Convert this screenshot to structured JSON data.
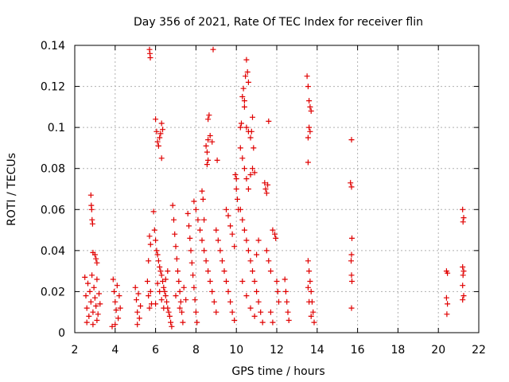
{
  "chart_data": {
    "type": "scatter",
    "title": "Day 356 of 2021, Rate Of TEC Index for receiver flin",
    "xlabel": "GPS time / hours",
    "ylabel": "ROTI / TECUs",
    "xlim": [
      2,
      22
    ],
    "ylim": [
      0,
      0.14
    ],
    "x_ticks": [
      2,
      4,
      6,
      8,
      10,
      12,
      14,
      16,
      18,
      20,
      22
    ],
    "y_ticks": [
      0,
      0.02,
      0.04,
      0.06,
      0.08,
      0.1,
      0.12,
      0.14
    ],
    "x_tick_labels": [
      "2",
      "4",
      "6",
      "8",
      "10",
      "12",
      "14",
      "16",
      "18",
      "20",
      "22"
    ],
    "y_tick_labels": [
      "0",
      "0.02",
      "0.04",
      "0.06",
      "0.08",
      "0.1",
      "0.12",
      "0.14"
    ],
    "grid": true,
    "marker": "+",
    "marker_color": "#e00000",
    "series": [
      {
        "name": "ROTI",
        "points": [
          [
            2.5,
            0.027
          ],
          [
            2.55,
            0.018
          ],
          [
            2.6,
            0.012
          ],
          [
            2.65,
            0.024
          ],
          [
            2.7,
            0.008
          ],
          [
            2.75,
            0.02
          ],
          [
            2.8,
            0.015
          ],
          [
            2.85,
            0.028
          ],
          [
            2.9,
            0.01
          ],
          [
            2.95,
            0.022
          ],
          [
            3.0,
            0.017
          ],
          [
            3.05,
            0.013
          ],
          [
            3.1,
            0.026
          ],
          [
            3.15,
            0.009
          ],
          [
            3.2,
            0.019
          ],
          [
            3.25,
            0.014
          ],
          [
            2.6,
            0.005
          ],
          [
            2.9,
            0.004
          ],
          [
            3.1,
            0.006
          ],
          [
            2.8,
            0.067
          ],
          [
            2.82,
            0.062
          ],
          [
            2.84,
            0.06
          ],
          [
            2.86,
            0.055
          ],
          [
            2.88,
            0.053
          ],
          [
            2.9,
            0.039
          ],
          [
            3.0,
            0.038
          ],
          [
            3.1,
            0.034
          ],
          [
            3.05,
            0.036
          ],
          [
            3.9,
            0.026
          ],
          [
            3.95,
            0.02
          ],
          [
            4.0,
            0.015
          ],
          [
            4.05,
            0.011
          ],
          [
            4.1,
            0.023
          ],
          [
            4.15,
            0.007
          ],
          [
            4.2,
            0.018
          ],
          [
            4.25,
            0.012
          ],
          [
            3.85,
            0.003
          ],
          [
            4.0,
            0.004
          ],
          [
            5.0,
            0.022
          ],
          [
            5.05,
            0.016
          ],
          [
            5.1,
            0.01
          ],
          [
            5.15,
            0.019
          ],
          [
            5.2,
            0.007
          ],
          [
            5.25,
            0.013
          ],
          [
            5.1,
            0.004
          ],
          [
            5.6,
            0.025
          ],
          [
            5.65,
            0.018
          ],
          [
            5.7,
            0.012
          ],
          [
            5.75,
            0.02
          ],
          [
            5.8,
            0.014
          ],
          [
            5.65,
            0.035
          ],
          [
            5.7,
            0.047
          ],
          [
            5.75,
            0.043
          ],
          [
            5.7,
            0.138
          ],
          [
            5.72,
            0.136
          ],
          [
            5.74,
            0.134
          ],
          [
            5.9,
            0.059
          ],
          [
            5.95,
            0.05
          ],
          [
            6.0,
            0.045
          ],
          [
            6.05,
            0.04
          ],
          [
            6.1,
            0.038
          ],
          [
            6.15,
            0.035
          ],
          [
            6.2,
            0.032
          ],
          [
            6.25,
            0.03
          ],
          [
            6.3,
            0.028
          ],
          [
            6.35,
            0.025
          ],
          [
            6.4,
            0.022
          ],
          [
            6.45,
            0.02
          ],
          [
            6.5,
            0.018
          ],
          [
            6.55,
            0.015
          ],
          [
            6.6,
            0.012
          ],
          [
            6.65,
            0.01
          ],
          [
            6.7,
            0.008
          ],
          [
            6.75,
            0.005
          ],
          [
            6.8,
            0.003
          ],
          [
            6.0,
            0.014
          ],
          [
            6.1,
            0.024
          ],
          [
            6.2,
            0.02
          ],
          [
            6.3,
            0.016
          ],
          [
            6.4,
            0.012
          ],
          [
            6.5,
            0.026
          ],
          [
            6.6,
            0.03
          ],
          [
            6.0,
            0.104
          ],
          [
            6.05,
            0.098
          ],
          [
            6.1,
            0.093
          ],
          [
            6.15,
            0.091
          ],
          [
            6.2,
            0.095
          ],
          [
            6.25,
            0.097
          ],
          [
            6.3,
            0.102
          ],
          [
            6.35,
            0.099
          ],
          [
            6.3,
            0.085
          ],
          [
            6.85,
            0.062
          ],
          [
            6.9,
            0.055
          ],
          [
            6.95,
            0.048
          ],
          [
            7.0,
            0.042
          ],
          [
            7.05,
            0.036
          ],
          [
            7.1,
            0.03
          ],
          [
            7.15,
            0.025
          ],
          [
            7.2,
            0.02
          ],
          [
            7.25,
            0.015
          ],
          [
            7.3,
            0.01
          ],
          [
            7.35,
            0.005
          ],
          [
            7.0,
            0.018
          ],
          [
            7.2,
            0.012
          ],
          [
            7.4,
            0.022
          ],
          [
            7.5,
            0.016
          ],
          [
            7.6,
            0.058
          ],
          [
            7.65,
            0.052
          ],
          [
            7.7,
            0.046
          ],
          [
            7.75,
            0.04
          ],
          [
            7.8,
            0.034
          ],
          [
            7.85,
            0.028
          ],
          [
            7.9,
            0.022
          ],
          [
            7.95,
            0.016
          ],
          [
            8.0,
            0.01
          ],
          [
            8.05,
            0.005
          ],
          [
            7.9,
            0.064
          ],
          [
            8.0,
            0.06
          ],
          [
            8.1,
            0.055
          ],
          [
            8.2,
            0.05
          ],
          [
            8.3,
            0.045
          ],
          [
            8.4,
            0.04
          ],
          [
            8.5,
            0.035
          ],
          [
            8.6,
            0.03
          ],
          [
            8.7,
            0.025
          ],
          [
            8.8,
            0.02
          ],
          [
            8.9,
            0.015
          ],
          [
            9.0,
            0.01
          ],
          [
            8.3,
            0.069
          ],
          [
            8.35,
            0.065
          ],
          [
            8.4,
            0.055
          ],
          [
            8.5,
            0.091
          ],
          [
            8.55,
            0.088
          ],
          [
            8.6,
            0.094
          ],
          [
            8.6,
            0.104
          ],
          [
            8.65,
            0.106
          ],
          [
            8.7,
            0.096
          ],
          [
            8.8,
            0.093
          ],
          [
            8.55,
            0.082
          ],
          [
            8.6,
            0.084
          ],
          [
            8.85,
            0.138
          ],
          [
            9.05,
            0.084
          ],
          [
            9.0,
            0.05
          ],
          [
            9.1,
            0.045
          ],
          [
            9.2,
            0.04
          ],
          [
            9.3,
            0.035
          ],
          [
            9.4,
            0.03
          ],
          [
            9.5,
            0.025
          ],
          [
            9.6,
            0.02
          ],
          [
            9.7,
            0.015
          ],
          [
            9.8,
            0.01
          ],
          [
            9.9,
            0.006
          ],
          [
            9.5,
            0.06
          ],
          [
            9.6,
            0.057
          ],
          [
            9.7,
            0.052
          ],
          [
            9.8,
            0.048
          ],
          [
            9.9,
            0.042
          ],
          [
            9.95,
            0.077
          ],
          [
            10.0,
            0.07
          ],
          [
            10.05,
            0.065
          ],
          [
            10.1,
            0.06
          ],
          [
            10.0,
            0.075
          ],
          [
            10.2,
            0.1
          ],
          [
            10.25,
            0.102
          ],
          [
            10.3,
            0.115
          ],
          [
            10.35,
            0.119
          ],
          [
            10.4,
            0.113
          ],
          [
            10.45,
            0.125
          ],
          [
            10.5,
            0.133
          ],
          [
            10.55,
            0.127
          ],
          [
            10.6,
            0.122
          ],
          [
            10.4,
            0.11
          ],
          [
            10.5,
            0.1
          ],
          [
            10.6,
            0.098
          ],
          [
            10.7,
            0.095
          ],
          [
            10.75,
            0.098
          ],
          [
            10.8,
            0.105
          ],
          [
            10.85,
            0.09
          ],
          [
            10.2,
            0.09
          ],
          [
            10.3,
            0.085
          ],
          [
            10.4,
            0.08
          ],
          [
            10.5,
            0.075
          ],
          [
            10.6,
            0.07
          ],
          [
            10.7,
            0.077
          ],
          [
            10.8,
            0.08
          ],
          [
            10.9,
            0.078
          ],
          [
            10.2,
            0.06
          ],
          [
            10.3,
            0.055
          ],
          [
            10.4,
            0.05
          ],
          [
            10.5,
            0.045
          ],
          [
            10.6,
            0.04
          ],
          [
            10.7,
            0.035
          ],
          [
            10.8,
            0.03
          ],
          [
            10.9,
            0.025
          ],
          [
            11.0,
            0.02
          ],
          [
            11.1,
            0.015
          ],
          [
            11.2,
            0.01
          ],
          [
            11.3,
            0.005
          ],
          [
            10.3,
            0.025
          ],
          [
            10.5,
            0.018
          ],
          [
            10.7,
            0.012
          ],
          [
            10.9,
            0.008
          ],
          [
            11.0,
            0.038
          ],
          [
            11.1,
            0.045
          ],
          [
            11.4,
            0.073
          ],
          [
            11.45,
            0.07
          ],
          [
            11.5,
            0.068
          ],
          [
            11.55,
            0.072
          ],
          [
            11.6,
            0.103
          ],
          [
            11.5,
            0.04
          ],
          [
            11.6,
            0.035
          ],
          [
            11.7,
            0.03
          ],
          [
            11.8,
            0.05
          ],
          [
            11.9,
            0.048
          ],
          [
            11.95,
            0.046
          ],
          [
            12.0,
            0.025
          ],
          [
            12.05,
            0.02
          ],
          [
            12.1,
            0.015
          ],
          [
            11.7,
            0.01
          ],
          [
            11.8,
            0.005
          ],
          [
            12.4,
            0.026
          ],
          [
            12.45,
            0.02
          ],
          [
            12.5,
            0.015
          ],
          [
            12.55,
            0.01
          ],
          [
            12.6,
            0.006
          ],
          [
            13.5,
            0.125
          ],
          [
            13.55,
            0.12
          ],
          [
            13.6,
            0.113
          ],
          [
            13.65,
            0.11
          ],
          [
            13.7,
            0.108
          ],
          [
            13.55,
            0.095
          ],
          [
            13.6,
            0.1
          ],
          [
            13.65,
            0.098
          ],
          [
            13.55,
            0.083
          ],
          [
            13.55,
            0.035
          ],
          [
            13.6,
            0.03
          ],
          [
            13.65,
            0.025
          ],
          [
            13.7,
            0.02
          ],
          [
            13.75,
            0.015
          ],
          [
            13.8,
            0.01
          ],
          [
            13.85,
            0.005
          ],
          [
            13.6,
            0.015
          ],
          [
            13.7,
            0.008
          ],
          [
            13.55,
            0.022
          ],
          [
            15.7,
            0.094
          ],
          [
            15.65,
            0.073
          ],
          [
            15.7,
            0.071
          ],
          [
            15.72,
            0.046
          ],
          [
            15.7,
            0.038
          ],
          [
            15.68,
            0.035
          ],
          [
            15.7,
            0.028
          ],
          [
            15.72,
            0.025
          ],
          [
            15.7,
            0.012
          ],
          [
            20.4,
            0.03
          ],
          [
            20.45,
            0.029
          ],
          [
            20.4,
            0.017
          ],
          [
            20.45,
            0.014
          ],
          [
            20.42,
            0.009
          ],
          [
            21.2,
            0.06
          ],
          [
            21.25,
            0.056
          ],
          [
            21.22,
            0.054
          ],
          [
            21.2,
            0.032
          ],
          [
            21.25,
            0.03
          ],
          [
            21.22,
            0.028
          ],
          [
            21.2,
            0.023
          ],
          [
            21.25,
            0.018
          ],
          [
            21.2,
            0.016
          ]
        ]
      }
    ]
  }
}
